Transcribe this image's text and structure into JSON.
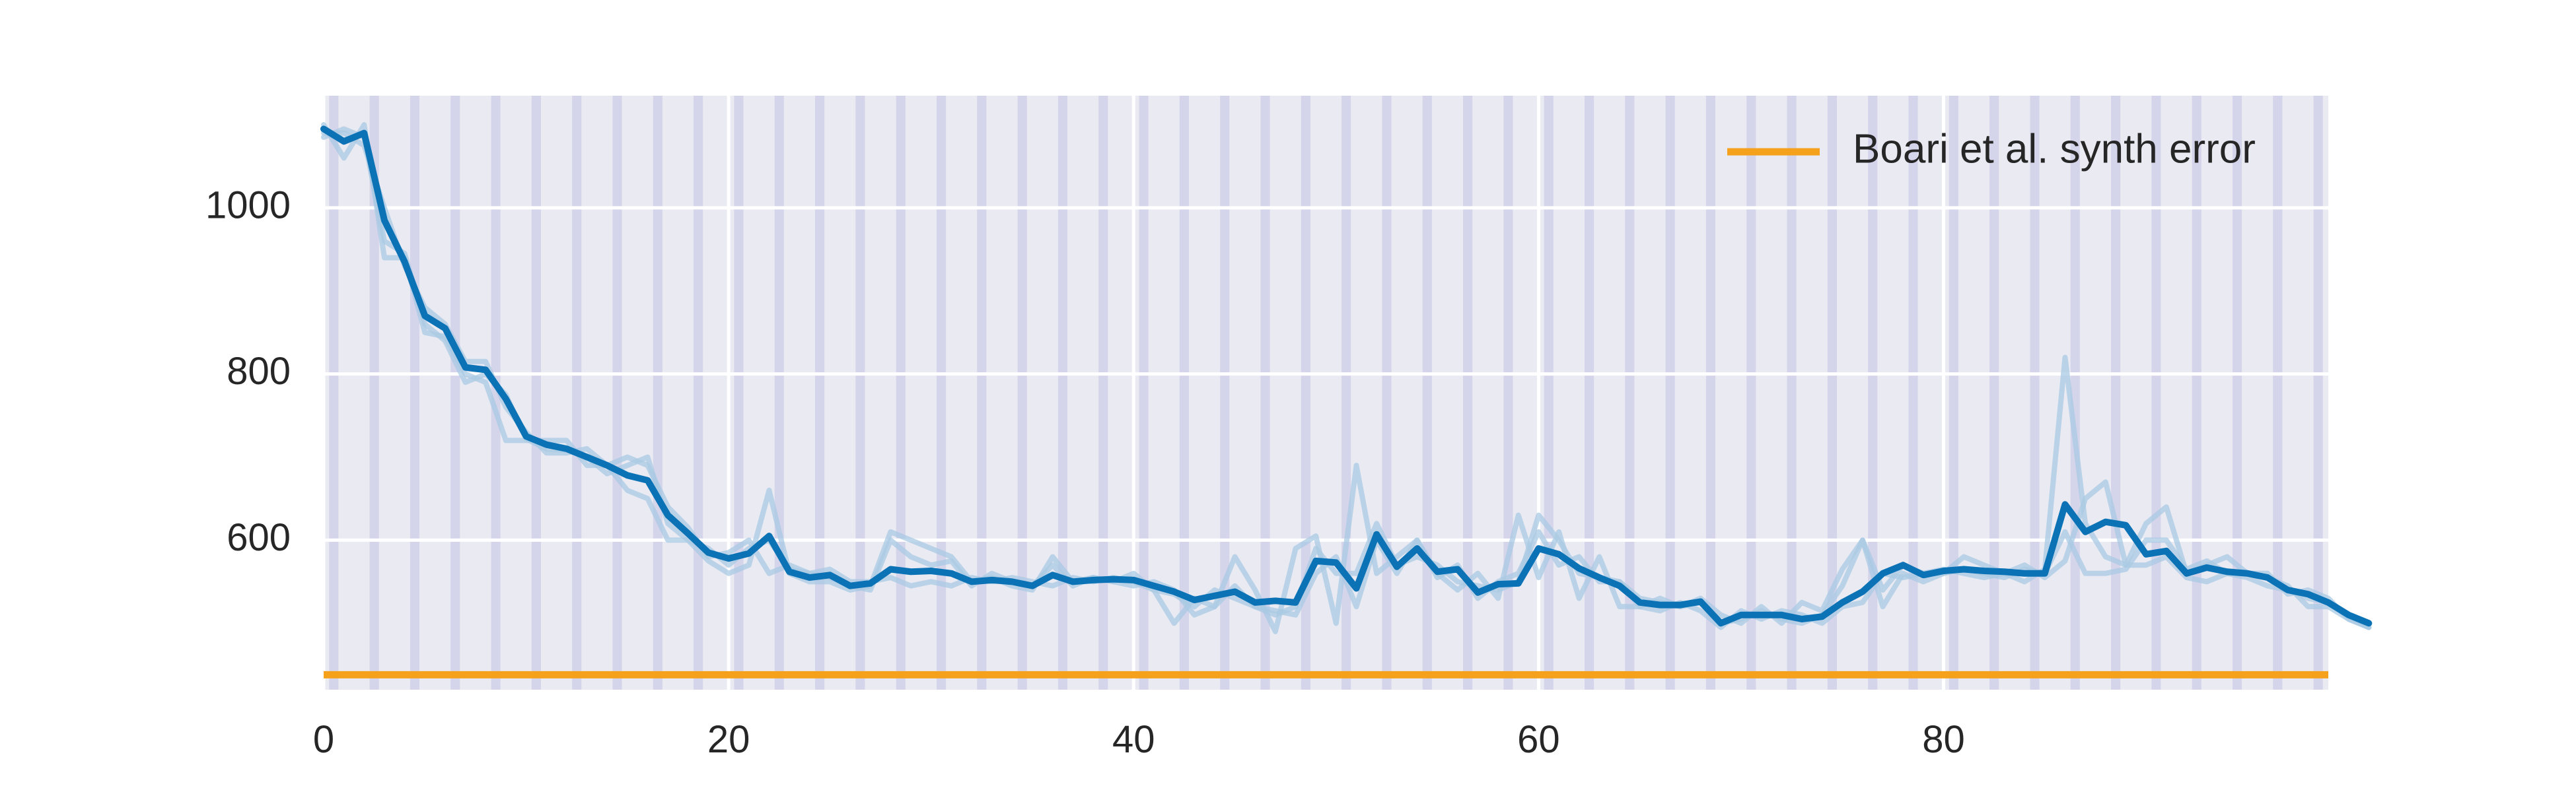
{
  "chart_data": {
    "type": "line",
    "xlim": [
      0,
      99
    ],
    "ylim": [
      420,
      1135
    ],
    "x_ticks": [
      0,
      20,
      40,
      60,
      80
    ],
    "y_ticks": [
      600,
      800,
      1000
    ],
    "grid": true,
    "legend_position": "top-right",
    "band_spacing": 2,
    "colors": {
      "background": "#eaeaf2",
      "band": "#d4d4ea",
      "grid": "#ffffff",
      "main_line": "#0b72b6",
      "faint_line": "#a9c9e3",
      "reference": "#f5a11c"
    },
    "reference_line": {
      "name": "Boari et al. synth error",
      "value": 438
    },
    "series": [
      {
        "values": [
          1095,
          1080,
          1090,
          985,
          935,
          870,
          855,
          808,
          805,
          770,
          725,
          715,
          710,
          700,
          690,
          678,
          672,
          630,
          608,
          585,
          578,
          584,
          605,
          562,
          555,
          558,
          545,
          548,
          565,
          562,
          563,
          560,
          550,
          552,
          550,
          545,
          558,
          550,
          552,
          553,
          552,
          545,
          538,
          528,
          533,
          538,
          525,
          527,
          525,
          575,
          573,
          542,
          607,
          568,
          590,
          562,
          565,
          537,
          547,
          548,
          590,
          583,
          566,
          555,
          545,
          525,
          522,
          522,
          526,
          500,
          510,
          510,
          510,
          505,
          508,
          525,
          538,
          560,
          570,
          558,
          563,
          565,
          563,
          562,
          560,
          560,
          643,
          610,
          622,
          618,
          583,
          587,
          560,
          567,
          562,
          560,
          555,
          540,
          535,
          525,
          510,
          500
        ]
      },
      {
        "values": [
          1100,
          1060,
          1100,
          940,
          940,
          850,
          845,
          800,
          790,
          720,
          720,
          720,
          720,
          690,
          690,
          660,
          650,
          600,
          600,
          575,
          560,
          570,
          660,
          560,
          550,
          550,
          540,
          545,
          610,
          600,
          590,
          580,
          550,
          555,
          545,
          540,
          580,
          550,
          555,
          550,
          560,
          540,
          500,
          530,
          520,
          580,
          540,
          490,
          590,
          605,
          500,
          690,
          560,
          580,
          600,
          560,
          540,
          560,
          530,
          630,
          555,
          610,
          530,
          580,
          520,
          520,
          530,
          520,
          530,
          510,
          500,
          520,
          500,
          525,
          515,
          565,
          600,
          520,
          560,
          550,
          560,
          580,
          570,
          560,
          550,
          565,
          820,
          620,
          580,
          570,
          620,
          640,
          560,
          570,
          580,
          560,
          560,
          535,
          540,
          530,
          505,
          495
        ]
      },
      {
        "values": [
          1090,
          1090,
          1075,
          1000,
          930,
          880,
          860,
          815,
          815,
          760,
          730,
          705,
          705,
          710,
          690,
          700,
          690,
          640,
          615,
          580,
          585,
          600,
          560,
          570,
          560,
          565,
          550,
          550,
          555,
          545,
          550,
          545,
          555,
          550,
          555,
          550,
          545,
          555,
          550,
          555,
          550,
          540,
          535,
          520,
          540,
          530,
          520,
          515,
          510,
          560,
          580,
          520,
          600,
          560,
          600,
          555,
          570,
          530,
          550,
          560,
          610,
          570,
          580,
          550,
          550,
          520,
          515,
          525,
          515,
          495,
          515,
          505,
          515,
          510,
          500,
          520,
          525,
          560,
          555,
          560,
          565,
          560,
          555,
          560,
          570,
          555,
          575,
          650,
          670,
          570,
          570,
          580,
          555,
          550,
          560,
          560,
          555,
          545,
          520,
          520,
          505,
          495
        ]
      },
      {
        "values": [
          1085,
          1095,
          1085,
          960,
          945,
          860,
          840,
          790,
          800,
          775,
          722,
          710,
          708,
          700,
          680,
          690,
          700,
          620,
          600,
          590,
          570,
          590,
          600,
          565,
          560,
          555,
          545,
          540,
          600,
          580,
          570,
          575,
          545,
          560,
          550,
          545,
          570,
          545,
          555,
          550,
          545,
          550,
          540,
          510,
          520,
          545,
          520,
          510,
          520,
          590,
          560,
          560,
          620,
          570,
          580,
          570,
          550,
          545,
          540,
          550,
          630,
          600,
          560,
          555,
          550,
          530,
          525,
          520,
          525,
          500,
          505,
          515,
          505,
          500,
          510,
          545,
          600,
          540,
          570,
          560,
          560,
          565,
          560,
          555,
          565,
          560,
          610,
          560,
          560,
          565,
          600,
          600,
          565,
          575,
          560,
          555,
          545,
          540,
          530,
          525,
          510,
          495
        ]
      }
    ]
  }
}
